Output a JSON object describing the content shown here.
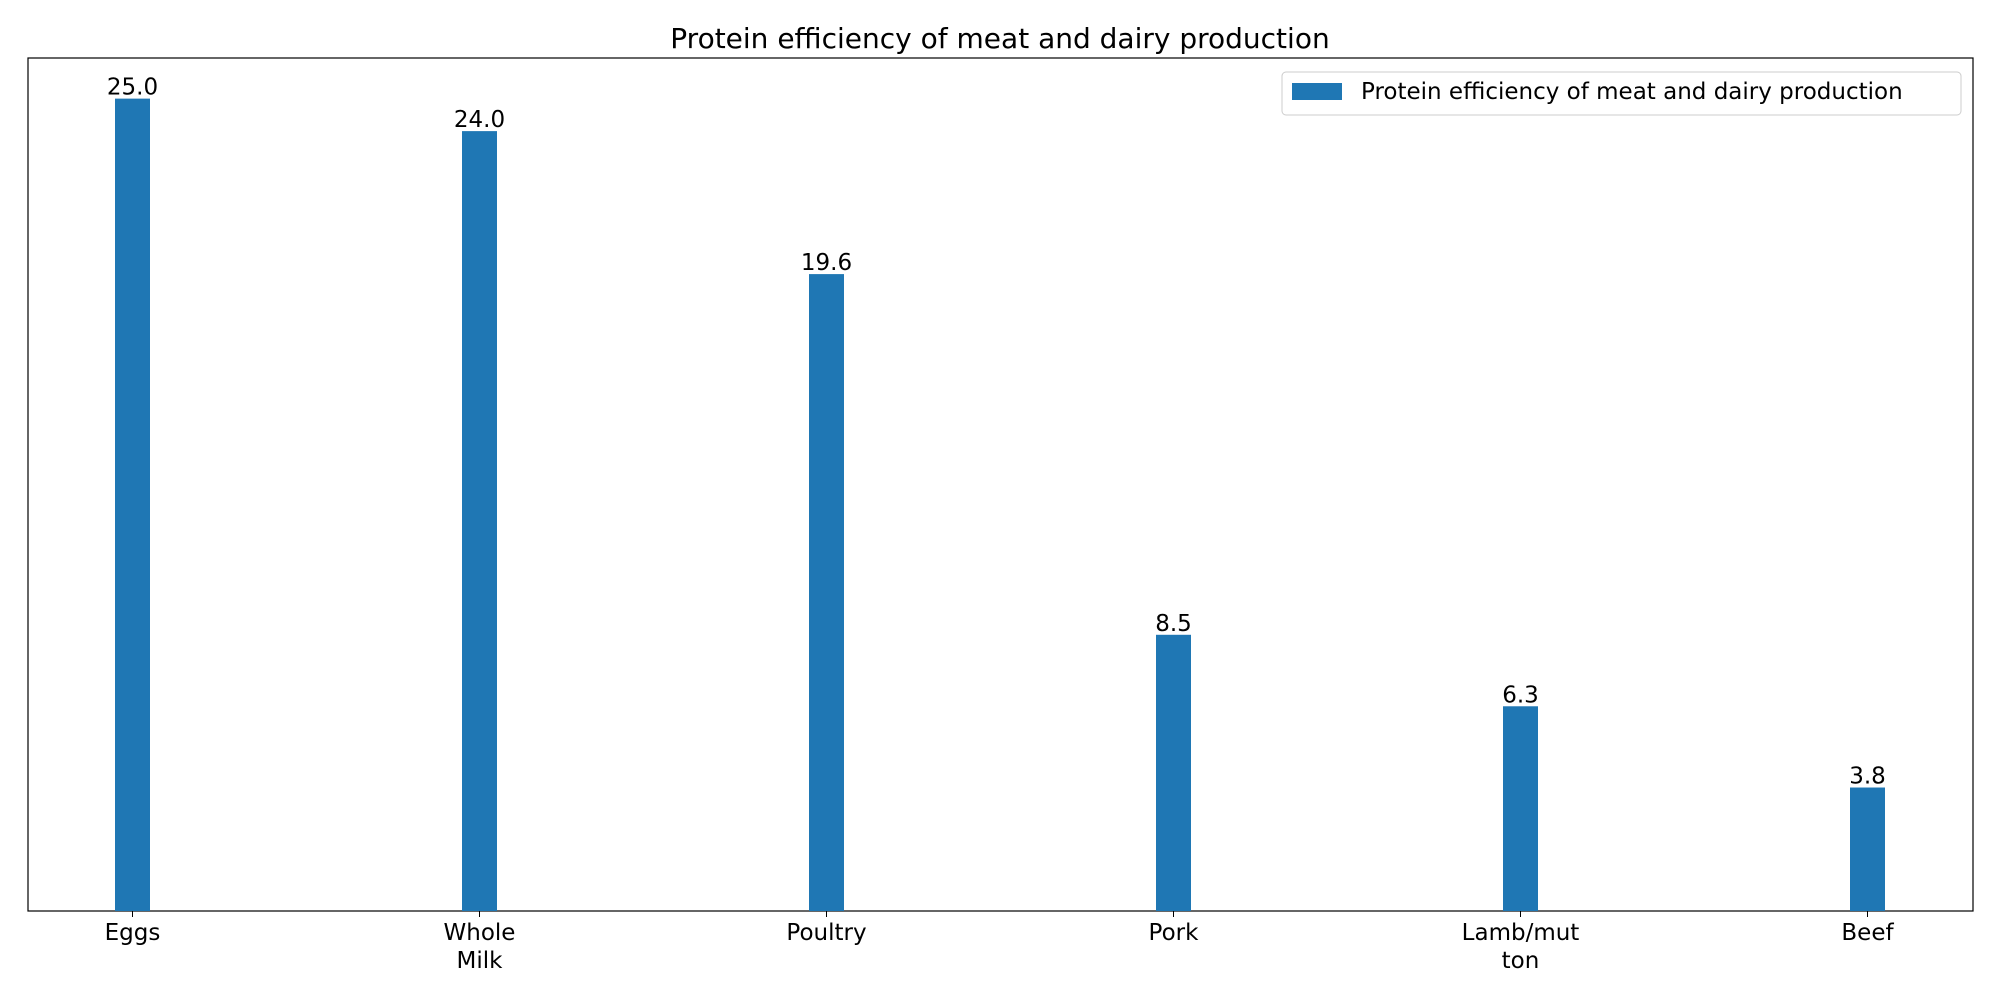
{
  "chart_data": {
    "type": "bar",
    "title": "Protein efficiency of meat and dairy production",
    "xlabel": "",
    "ylabel": "",
    "categories": [
      [
        "Eggs"
      ],
      [
        "Whole",
        "Milk"
      ],
      [
        "Poultry"
      ],
      [
        "Pork"
      ],
      [
        "Lamb/mut",
        "ton"
      ],
      [
        "Beef"
      ]
    ],
    "series": [
      {
        "name": "Protein efficiency of meat and dairy production",
        "color": "#1f77b4",
        "values": [
          25.0,
          24.0,
          19.6,
          8.5,
          6.3,
          3.8
        ],
        "value_labels": [
          "25.0",
          "24.0",
          "19.6",
          "8.5",
          "6.3",
          "3.8"
        ]
      }
    ],
    "ylim": [
      0,
      26.25
    ],
    "y_axis_visible": false,
    "grid": false,
    "legend_position": "top-right"
  }
}
